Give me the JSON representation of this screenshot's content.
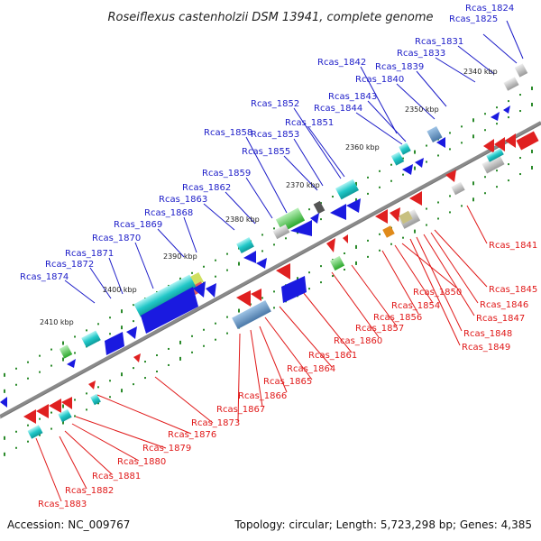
{
  "title": "Roseiflexus castenholzii DSM 13941, complete genome",
  "footer": {
    "accession": "Accession: NC_009767",
    "stats": "Topology: circular; Length: 5,723,298 bp; Genes: 4,385"
  },
  "colors": {
    "forward_label": "#1c1cc8",
    "reverse_label": "#e01818",
    "strand_line": "#7a7a7a",
    "tick": "#2a8a2a"
  },
  "scale_labels": [
    "2340 kbp",
    "2350 kbp",
    "2360 kbp",
    "2370 kbp",
    "2380 kbp",
    "2390 kbp",
    "2400 kbp",
    "2410 kbp"
  ],
  "forward_genes": [
    "Rcas_1824",
    "Rcas_1825",
    "Rcas_1831",
    "Rcas_1833",
    "Rcas_1839",
    "Rcas_1840",
    "Rcas_1842",
    "Rcas_1843",
    "Rcas_1844",
    "Rcas_1851",
    "Rcas_1852",
    "Rcas_1853",
    "Rcas_1855",
    "Rcas_1858",
    "Rcas_1859",
    "Rcas_1862",
    "Rcas_1863",
    "Rcas_1868",
    "Rcas_1869",
    "Rcas_1870",
    "Rcas_1871",
    "Rcas_1872",
    "Rcas_1874"
  ],
  "reverse_genes": [
    "Rcas_1841",
    "Rcas_1845",
    "Rcas_1846",
    "Rcas_1847",
    "Rcas_1848",
    "Rcas_1849",
    "Rcas_1850",
    "Rcas_1854",
    "Rcas_1856",
    "Rcas_1857",
    "Rcas_1860",
    "Rcas_1861",
    "Rcas_1864",
    "Rcas_1865",
    "Rcas_1866",
    "Rcas_1867",
    "Rcas_1873",
    "Rcas_1876",
    "Rcas_1879",
    "Rcas_1880",
    "Rcas_1881",
    "Rcas_1882",
    "Rcas_1883"
  ]
}
